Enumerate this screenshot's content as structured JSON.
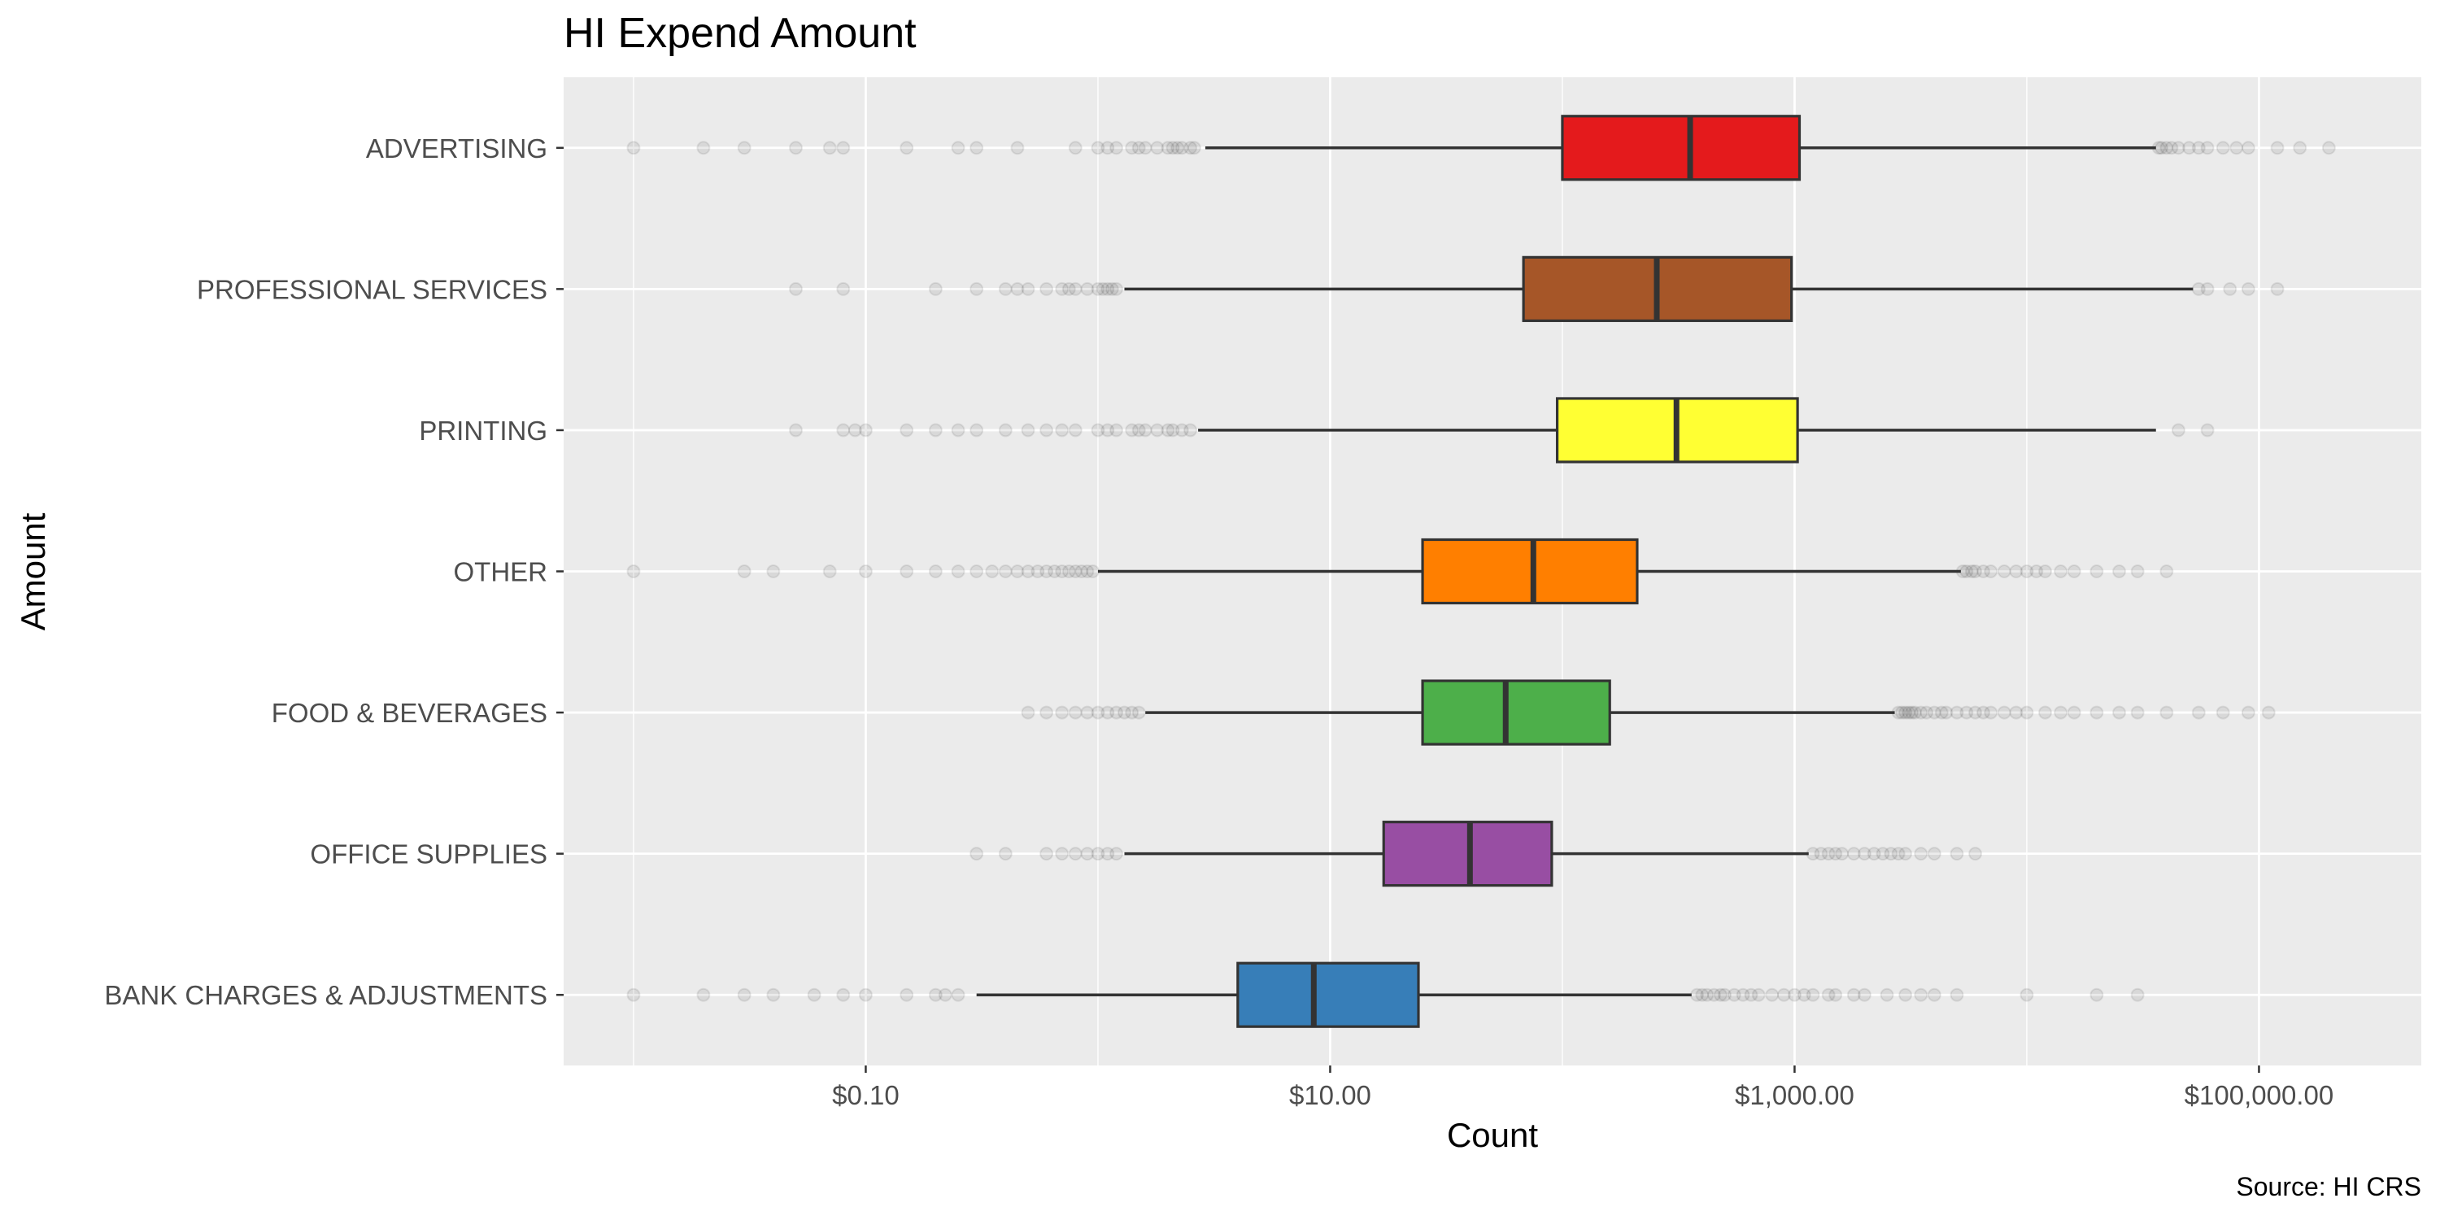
{
  "chart_data": {
    "type": "box",
    "orientation": "horizontal",
    "title": "HI Expend Amount",
    "xlabel": "Count",
    "ylabel": "Amount",
    "caption": "Source: HI CRS",
    "x_scale": "log10",
    "xlim": [
      0.005,
      500000
    ],
    "x_ticks": [
      0.1,
      10,
      1000,
      100000
    ],
    "x_tick_labels": [
      "$0.10",
      "$10.00",
      "$1,000.00",
      "$100,000.00"
    ],
    "grid": true,
    "legend": "none",
    "categories": [
      "ADVERTISING",
      "PROFESSIONAL SERVICES",
      "PRINTING",
      "OTHER",
      "FOOD & BEVERAGES",
      "OFFICE SUPPLIES",
      "BANK CHARGES & ADJUSTMENTS"
    ],
    "boxes": [
      {
        "category": "ADVERTISING",
        "color": "#E41A1C",
        "whisker_low": 2.9,
        "q1": 100,
        "median": 355,
        "q3": 1050,
        "whisker_high": 36000,
        "outliers_low": [
          0.01,
          0.02,
          0.03,
          0.05,
          0.07,
          0.08,
          0.15,
          0.25,
          0.3,
          0.45,
          0.8,
          1.0,
          1.1,
          1.2,
          1.4,
          1.5,
          1.6,
          1.8,
          2.0,
          2.1,
          2.2,
          2.3,
          2.5,
          2.6
        ],
        "outliers_high": [
          37000,
          38000,
          40000,
          42000,
          45000,
          50000,
          55000,
          60000,
          70000,
          80000,
          90000,
          120000,
          150000,
          200000
        ]
      },
      {
        "category": "PROFESSIONAL SERVICES",
        "color": "#A65628",
        "whisker_low": 1.3,
        "q1": 68,
        "median": 255,
        "q3": 970,
        "whisker_high": 52000,
        "outliers_low": [
          0.05,
          0.08,
          0.2,
          0.3,
          0.4,
          0.45,
          0.5,
          0.6,
          0.7,
          0.75,
          0.8,
          0.9,
          1.0,
          1.05,
          1.1,
          1.15,
          1.2
        ],
        "outliers_high": [
          55000,
          60000,
          75000,
          90000,
          120000
        ]
      },
      {
        "category": "PRINTING",
        "color": "#FFFF33",
        "whisker_low": 2.7,
        "q1": 95,
        "median": 310,
        "q3": 1030,
        "whisker_high": 36000,
        "outliers_low": [
          0.05,
          0.08,
          0.09,
          0.1,
          0.15,
          0.2,
          0.25,
          0.3,
          0.4,
          0.5,
          0.6,
          0.7,
          0.8,
          1.0,
          1.1,
          1.2,
          1.4,
          1.5,
          1.6,
          1.8,
          2.0,
          2.1,
          2.3,
          2.5
        ],
        "outliers_high": [
          45000,
          60000
        ]
      },
      {
        "category": "OTHER",
        "color": "#FF7F00",
        "whisker_low": 1.0,
        "q1": 25,
        "median": 75,
        "q3": 210,
        "whisker_high": 5200,
        "outliers_low": [
          0.01,
          0.03,
          0.04,
          0.07,
          0.1,
          0.15,
          0.2,
          0.25,
          0.3,
          0.35,
          0.4,
          0.45,
          0.5,
          0.55,
          0.6,
          0.65,
          0.7,
          0.75,
          0.8,
          0.85,
          0.9,
          0.95
        ],
        "outliers_high": [
          5300,
          5500,
          5800,
          6000,
          6500,
          7000,
          8000,
          9000,
          10000,
          11000,
          12000,
          14000,
          16000,
          20000,
          25000,
          30000,
          40000
        ]
      },
      {
        "category": "FOOD & BEVERAGES",
        "color": "#4DAF4A",
        "whisker_low": 1.6,
        "q1": 25,
        "median": 57,
        "q3": 160,
        "whisker_high": 2700,
        "outliers_low": [
          0.5,
          0.6,
          0.7,
          0.8,
          0.9,
          1.0,
          1.1,
          1.2,
          1.3,
          1.4,
          1.5
        ],
        "outliers_high": [
          2800,
          2900,
          3000,
          3100,
          3200,
          3300,
          3500,
          3700,
          4000,
          4300,
          4500,
          5000,
          5500,
          6000,
          6500,
          7000,
          8000,
          9000,
          10000,
          12000,
          14000,
          16000,
          20000,
          25000,
          30000,
          40000,
          55000,
          70000,
          90000,
          110000
        ]
      },
      {
        "category": "OFFICE SUPPLIES",
        "color": "#984EA3",
        "whisker_low": 1.3,
        "q1": 17,
        "median": 40,
        "q3": 90,
        "whisker_high": 1150,
        "outliers_low": [
          0.3,
          0.4,
          0.6,
          0.7,
          0.8,
          0.9,
          1.0,
          1.1,
          1.2
        ],
        "outliers_high": [
          1200,
          1300,
          1400,
          1500,
          1600,
          1800,
          2000,
          2200,
          2400,
          2600,
          2800,
          3000,
          3500,
          4000,
          5000,
          6000
        ]
      },
      {
        "category": "BANK CHARGES & ADJUSTMENTS",
        "color": "#377EB8",
        "whisker_low": 0.3,
        "q1": 4,
        "median": 8.5,
        "q3": 24,
        "whisker_high": 360,
        "outliers_low": [
          0.01,
          0.02,
          0.03,
          0.04,
          0.06,
          0.08,
          0.1,
          0.15,
          0.2,
          0.22,
          0.25
        ],
        "outliers_high": [
          380,
          400,
          420,
          450,
          480,
          500,
          550,
          600,
          650,
          700,
          800,
          900,
          1000,
          1100,
          1200,
          1400,
          1500,
          1800,
          2000,
          2500,
          3000,
          3500,
          4000,
          5000,
          10000,
          20000,
          30000
        ]
      }
    ]
  }
}
